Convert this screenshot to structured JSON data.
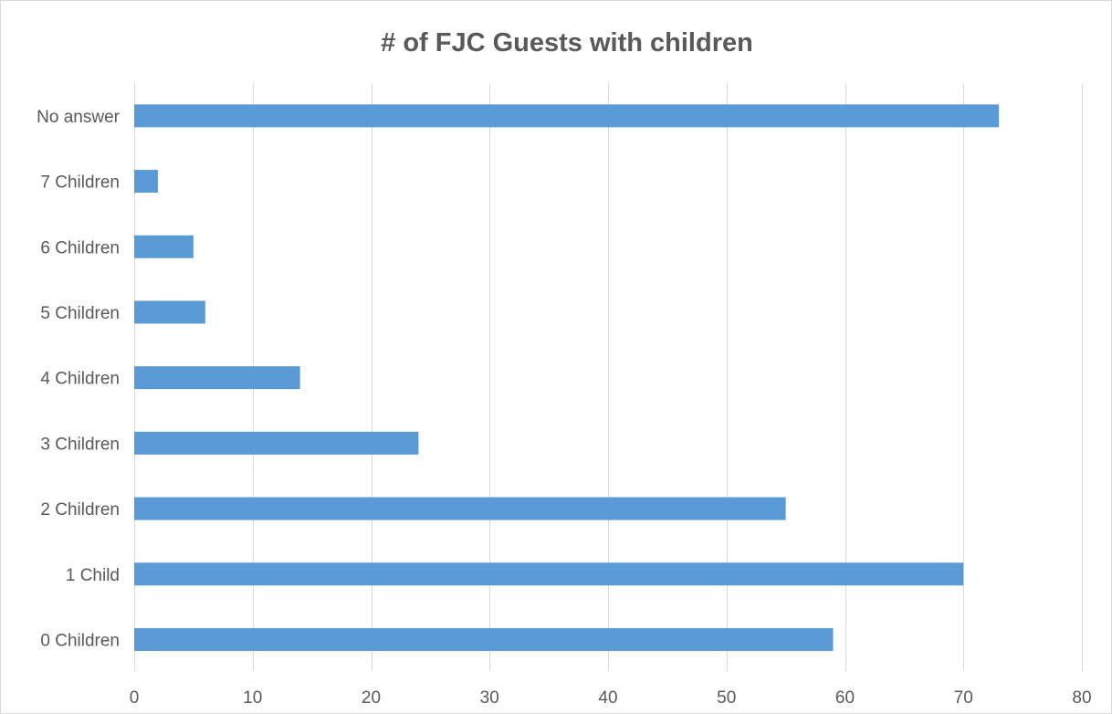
{
  "chart_data": {
    "type": "bar",
    "orientation": "horizontal",
    "title": "# of FJC Guests with children",
    "xlabel": "",
    "ylabel": "",
    "categories": [
      "0 Children",
      "1 Child",
      "2 Children",
      "3 Children",
      "4 Children",
      "5 Children",
      "6 Children",
      "7 Children",
      "No answer"
    ],
    "values": [
      59,
      70,
      55,
      24,
      14,
      6,
      5,
      2,
      73
    ],
    "xlim": [
      0,
      80
    ],
    "xticks": [
      0,
      10,
      20,
      30,
      40,
      50,
      60,
      70,
      80
    ],
    "grid": "vertical",
    "legend": "none",
    "bar_color": "#5b9bd5",
    "grid_color": "#d9d9d9",
    "text_color": "#595959"
  }
}
